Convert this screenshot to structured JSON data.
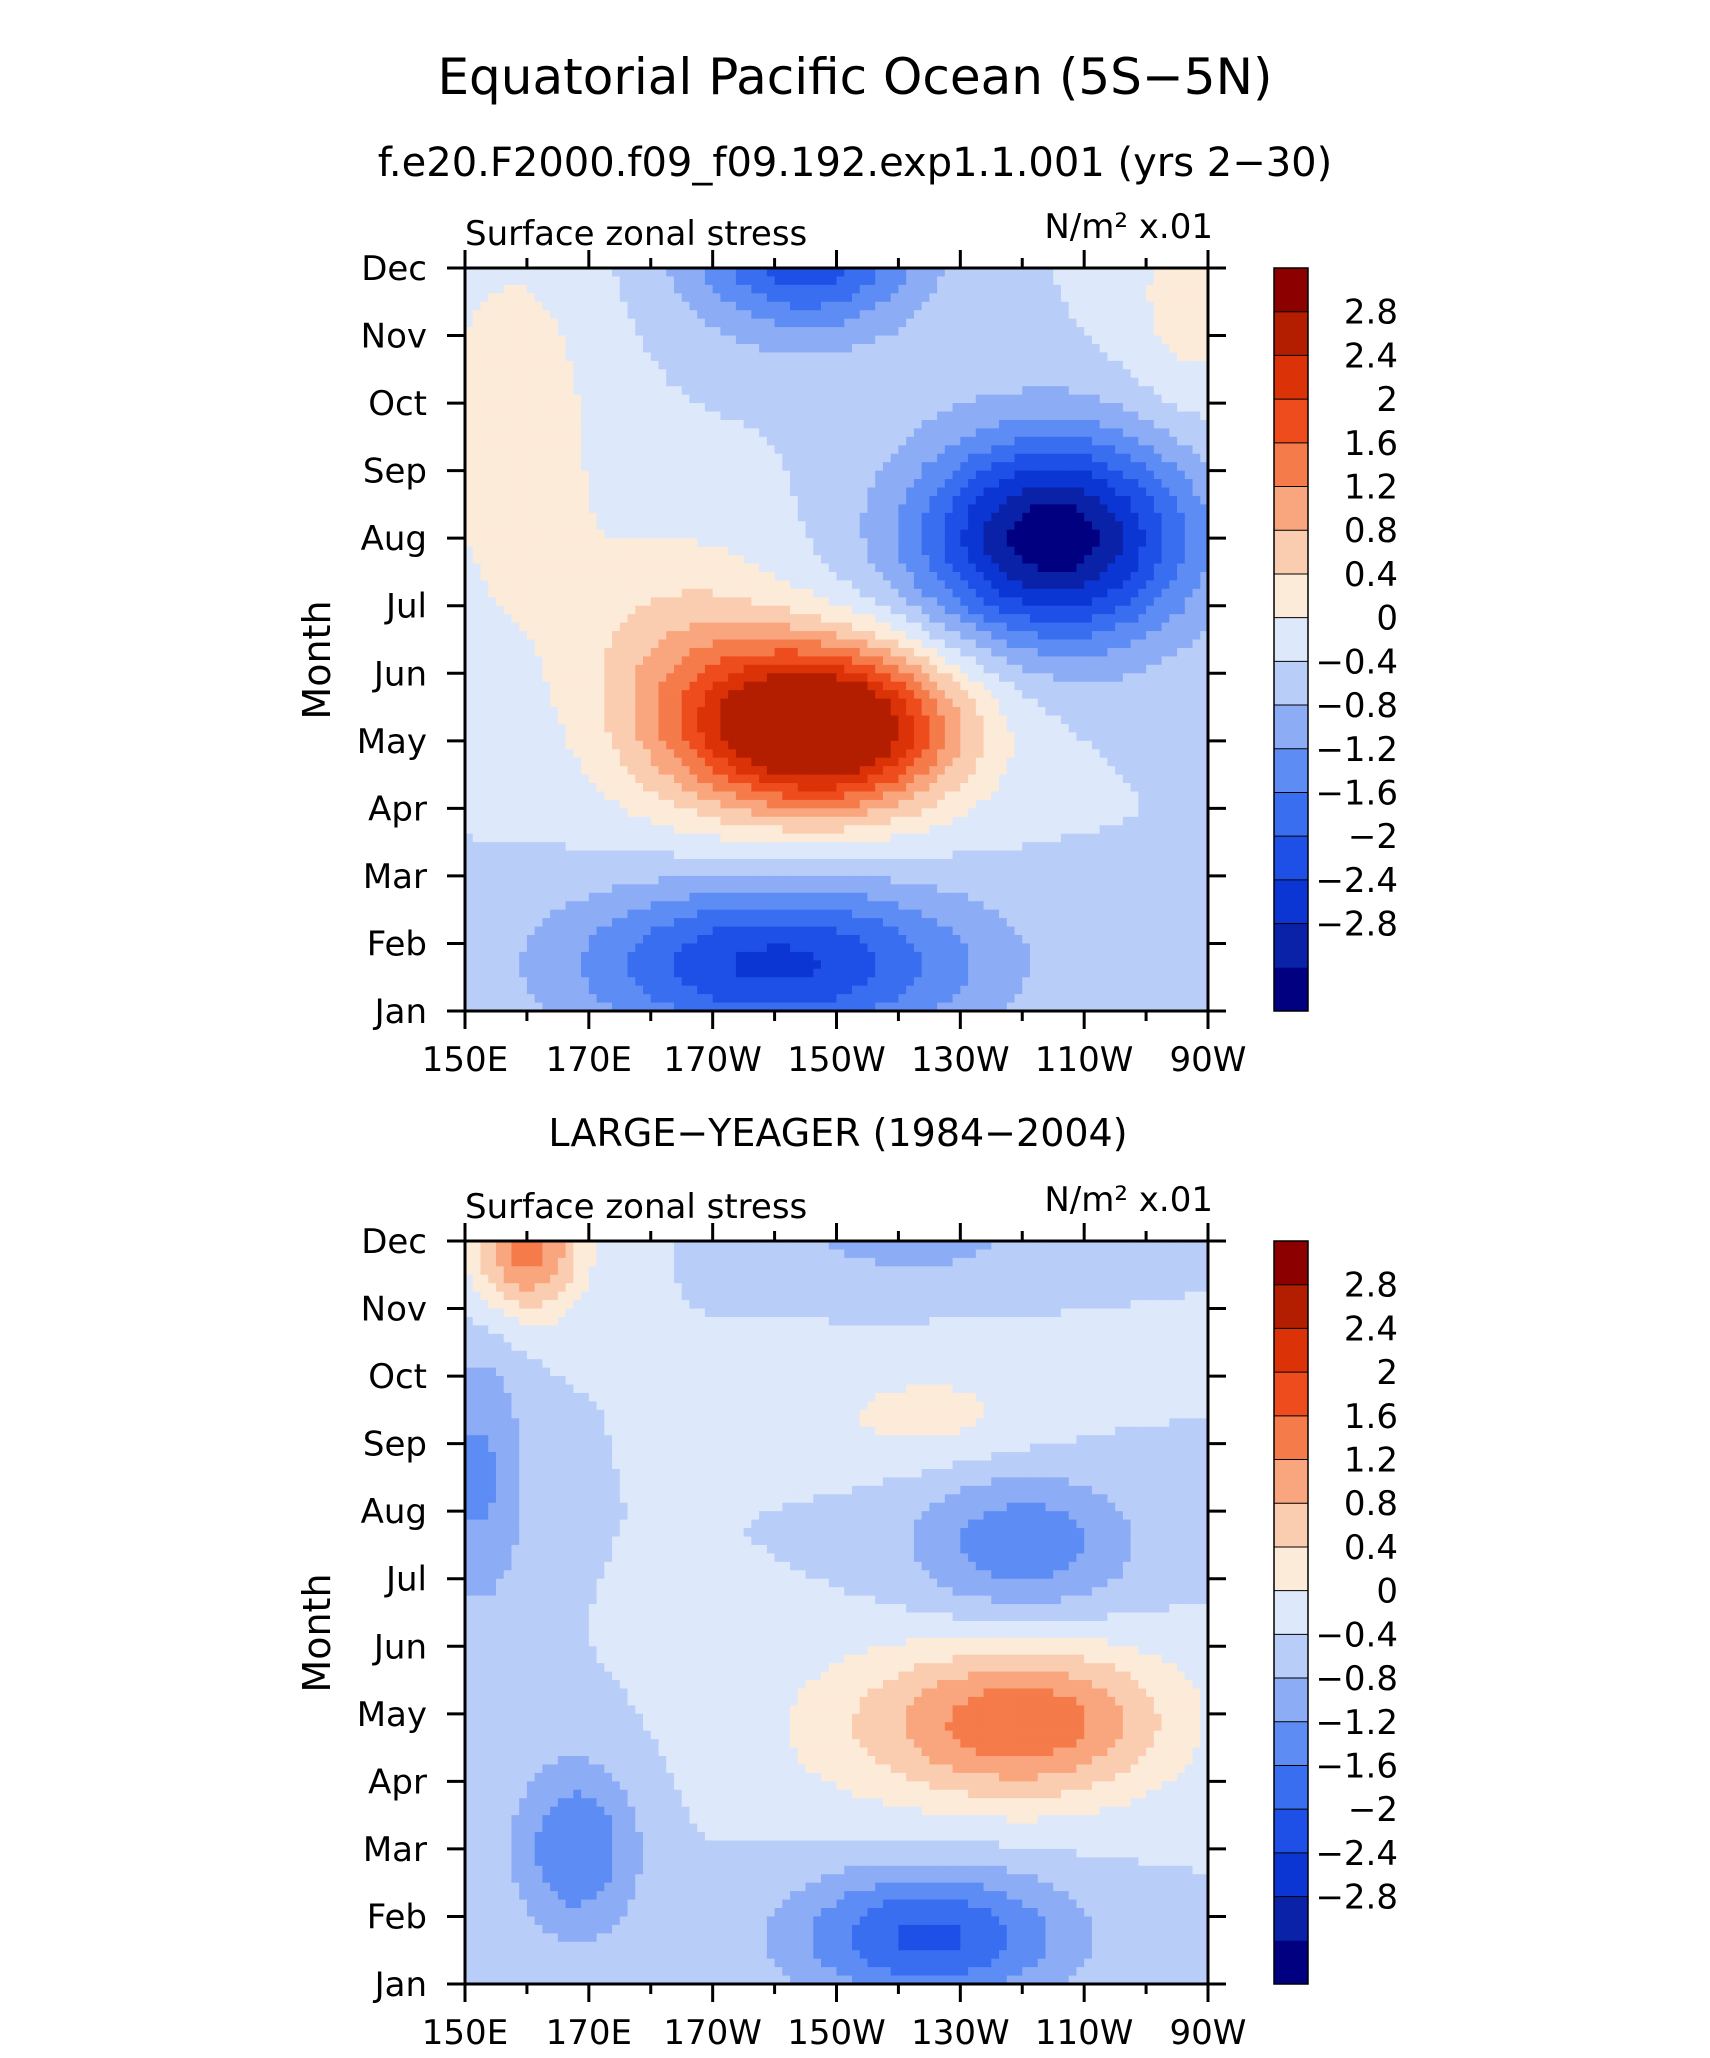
{
  "figure": {
    "title": "Equatorial Pacific Ocean (5S−5N)",
    "subtitle": "f.e20.F2000.f09_f09.192.exp1.1.001 (yrs 2−30)"
  },
  "chart_data": [
    {
      "type": "heatmap",
      "panel_title": "",
      "left_label": "Surface zonal stress",
      "right_label": "N/m² x.01",
      "ylabel": "Month",
      "xlabel": "",
      "x_ticks": [
        "150E",
        "170E",
        "170W",
        "150W",
        "130W",
        "110W",
        "90W"
      ],
      "y_ticks": [
        "Jan",
        "Feb",
        "Mar",
        "Apr",
        "May",
        "Jun",
        "Jul",
        "Aug",
        "Sep",
        "Oct",
        "Nov",
        "Dec"
      ],
      "x_range_lon_east": [
        150,
        270
      ],
      "colorbar_levels": [
        -2.8,
        -2.4,
        -2,
        -1.6,
        -1.2,
        -0.8,
        -0.4,
        0,
        0.4,
        0.8,
        1.2,
        1.6,
        2,
        2.4,
        2.8
      ],
      "colorbar_labels": [
        "2.8",
        "2.4",
        "2",
        "1.6",
        "1.2",
        "0.8",
        "0.4",
        "0",
        "−0.4",
        "−0.8",
        "−1.2",
        "−1.6",
        "−2",
        "−2.4",
        "−2.8"
      ],
      "features": [
        {
          "lon": 208,
          "month": 4.2,
          "amp": 3.9,
          "sx": 21,
          "sy": 1.25
        },
        {
          "lon": 185,
          "month": 5.0,
          "amp": 1.0,
          "sx": 18,
          "sy": 2.0
        },
        {
          "lon": 245,
          "month": 7.0,
          "amp": -3.1,
          "sx": 22,
          "sy": 1.55
        },
        {
          "lon": 205,
          "month": 11.4,
          "amp": -2.1,
          "sx": 18,
          "sy": 1.3
        },
        {
          "lon": 200,
          "month": 0.7,
          "amp": -2.1,
          "sx": 32,
          "sy": 1.2
        },
        {
          "lon": 158,
          "month": 8.5,
          "amp": 0.7,
          "sx": 14,
          "sy": 3.0
        },
        {
          "lon": 268,
          "month": 10.5,
          "amp": 0.6,
          "sx": 12,
          "sy": 1.8
        }
      ]
    },
    {
      "type": "heatmap",
      "panel_title": "LARGE−YEAGER (1984−2004)",
      "left_label": "Surface zonal stress",
      "right_label": "N/m² x.01",
      "ylabel": "Month",
      "xlabel": "",
      "x_ticks": [
        "150E",
        "170E",
        "170W",
        "150W",
        "130W",
        "110W",
        "90W"
      ],
      "y_ticks": [
        "Jan",
        "Feb",
        "Mar",
        "Apr",
        "May",
        "Jun",
        "Jul",
        "Aug",
        "Sep",
        "Oct",
        "Nov",
        "Dec"
      ],
      "x_range_lon_east": [
        150,
        270
      ],
      "colorbar_levels": [
        -2.8,
        -2.4,
        -2,
        -1.6,
        -1.2,
        -0.8,
        -0.4,
        0,
        0.4,
        0.8,
        1.2,
        1.6,
        2,
        2.4,
        2.8
      ],
      "colorbar_labels": [
        "2.8",
        "2.4",
        "2",
        "1.6",
        "1.2",
        "0.8",
        "0.4",
        "0",
        "−0.4",
        "−0.8",
        "−1.2",
        "−1.6",
        "−2",
        "−2.4",
        "−2.8"
      ],
      "features": [
        {
          "lon": 243,
          "month": 3.9,
          "amp": 1.45,
          "sx": 22,
          "sy": 1.15
        },
        {
          "lon": 225,
          "month": 3.8,
          "amp": 0.7,
          "sx": 28,
          "sy": 1.3
        },
        {
          "lon": 225,
          "month": 8.4,
          "amp": 0.55,
          "sx": 20,
          "sy": 0.8
        },
        {
          "lon": 160,
          "month": 10.9,
          "amp": 1.8,
          "sx": 9,
          "sy": 1.0
        },
        {
          "lon": 225,
          "month": 0.7,
          "amp": -1.7,
          "sx": 22,
          "sy": 1.0
        },
        {
          "lon": 168,
          "month": 2.0,
          "amp": -1.2,
          "sx": 10,
          "sy": 1.3
        },
        {
          "lon": 240,
          "month": 6.5,
          "amp": -1.1,
          "sx": 18,
          "sy": 1.1
        },
        {
          "lon": 222,
          "month": 11.6,
          "amp": -1.3,
          "sx": 16,
          "sy": 0.9
        },
        {
          "lon": 152,
          "month": 7.5,
          "amp": -0.9,
          "sx": 8,
          "sy": 2.0
        }
      ]
    }
  ]
}
